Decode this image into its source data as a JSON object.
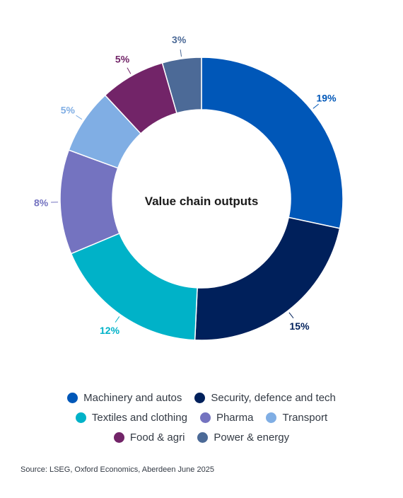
{
  "chart_data": {
    "type": "pie",
    "center_label": "Value chain outputs",
    "slices": [
      {
        "name": "Machinery and autos",
        "value": 19,
        "label": "19%",
        "color": "#0057B8"
      },
      {
        "name": "Security, defence and tech",
        "value": 15,
        "label": "15%",
        "color": "#00205B"
      },
      {
        "name": "Textiles and clothing",
        "value": 12,
        "label": "12%",
        "color": "#00B2C8"
      },
      {
        "name": "Pharma",
        "value": 8,
        "label": "8%",
        "color": "#7473C0"
      },
      {
        "name": "Transport",
        "value": 5,
        "label": "5%",
        "color": "#80AEE4"
      },
      {
        "name": "Food & agri",
        "value": 5,
        "label": "5%",
        "color": "#722468"
      },
      {
        "name": "Power & energy",
        "value": 3,
        "label": "3%",
        "color": "#4C6A97"
      }
    ],
    "legend_rows": [
      [
        0,
        1
      ],
      [
        2,
        3,
        4
      ],
      [
        5,
        6
      ]
    ]
  },
  "source": "Source: LSEG, Oxford Economics, Aberdeen June 2025"
}
